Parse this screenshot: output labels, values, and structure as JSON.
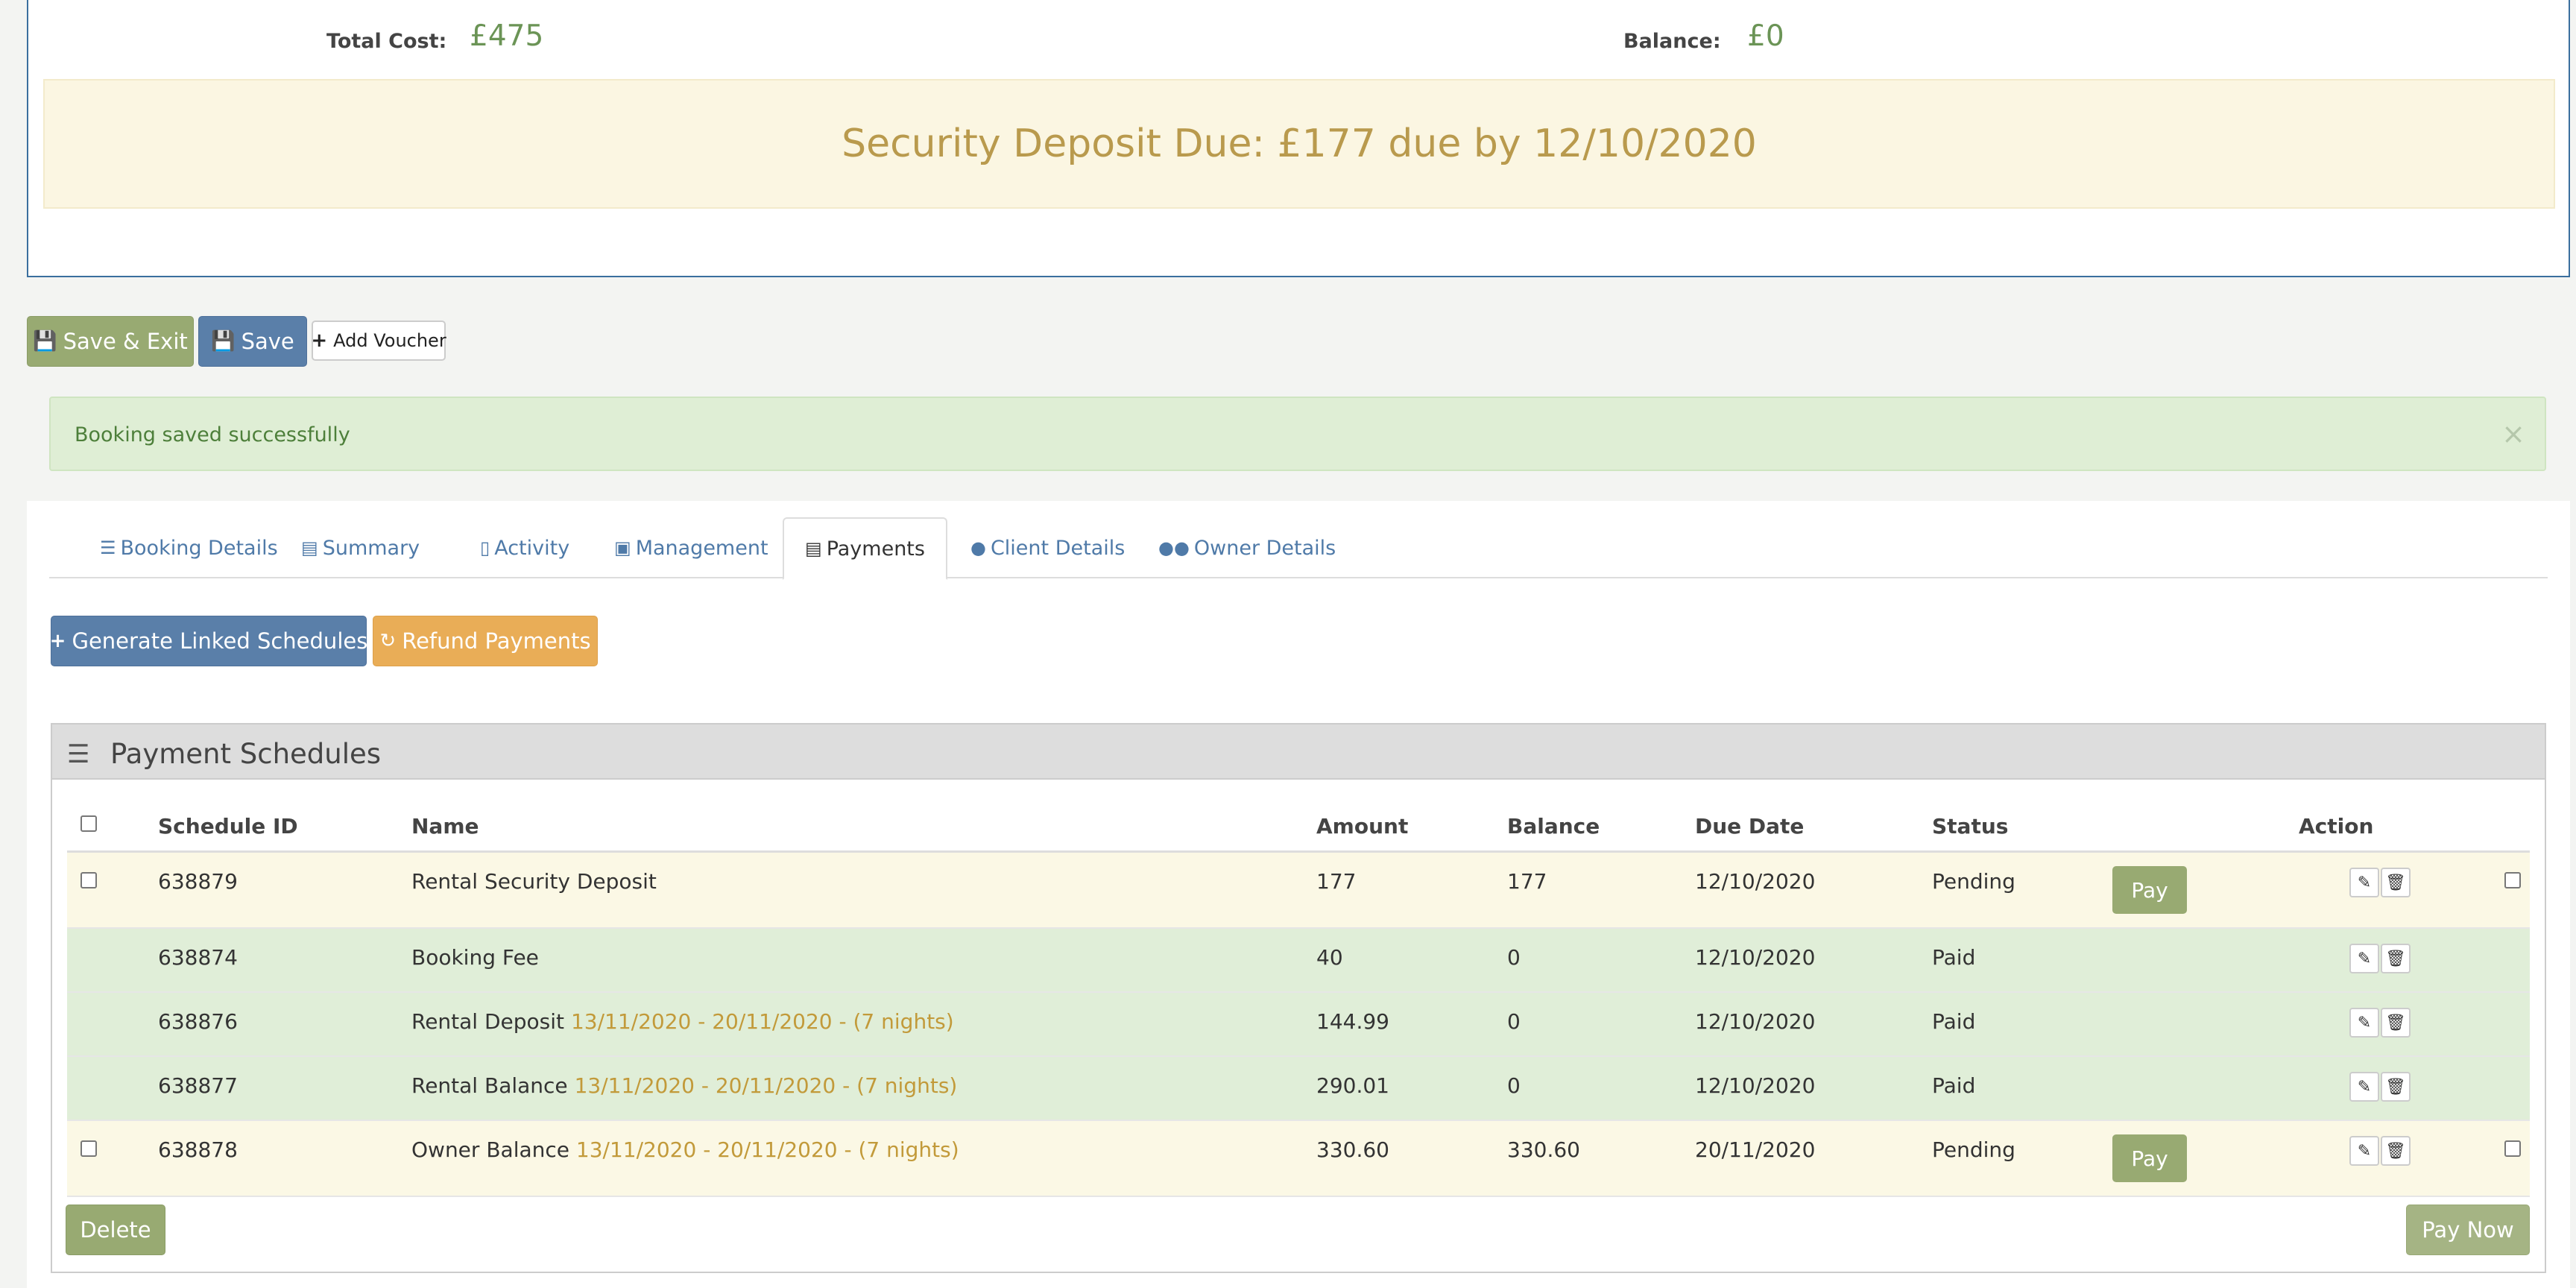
{
  "summary": {
    "total_cost_label": "Total Cost:",
    "total_cost_value": "£475",
    "balance_label": "Balance:",
    "balance_value": "£0",
    "deposit_due": "Security Deposit Due: £177 due by 12/10/2020"
  },
  "actions": {
    "save_exit": "Save & Exit",
    "save": "Save",
    "add_voucher": "Add Voucher"
  },
  "alert": {
    "message": "Booking saved successfully",
    "close": "×"
  },
  "tabs": [
    {
      "label": "Booking Details",
      "icon": "list-icon"
    },
    {
      "label": "Summary",
      "icon": "money-icon"
    },
    {
      "label": "Activity",
      "icon": "inbox-icon"
    },
    {
      "label": "Management",
      "icon": "desktop-icon"
    },
    {
      "label": "Payments",
      "icon": "credit-card-icon",
      "active": true
    },
    {
      "label": "Client Details",
      "icon": "user-icon"
    },
    {
      "label": "Owner Details",
      "icon": "users-icon"
    }
  ],
  "payments": {
    "generate_label": "Generate Linked Schedules",
    "refund_label": "Refund Payments",
    "panel_title": "Payment Schedules",
    "columns": {
      "id": "Schedule ID",
      "name": "Name",
      "amount": "Amount",
      "balance": "Balance",
      "due": "Due Date",
      "status": "Status",
      "action": "Action"
    },
    "rows": [
      {
        "id": "638879",
        "name": "Rental Security Deposit",
        "dates": "",
        "amount": "177",
        "balance": "177",
        "due": "12/10/2020",
        "status": "Pending",
        "pay": "Pay"
      },
      {
        "id": "638874",
        "name": "Booking Fee",
        "dates": "",
        "amount": "40",
        "balance": "0",
        "due": "12/10/2020",
        "status": "Paid"
      },
      {
        "id": "638876",
        "name": "Rental Deposit",
        "dates": "13/11/2020 - 20/11/2020 - (7 nights)",
        "amount": "144.99",
        "balance": "0",
        "due": "12/10/2020",
        "status": "Paid"
      },
      {
        "id": "638877",
        "name": "Rental Balance",
        "dates": "13/11/2020 - 20/11/2020 - (7 nights)",
        "amount": "290.01",
        "balance": "0",
        "due": "12/10/2020",
        "status": "Paid"
      },
      {
        "id": "638878",
        "name": "Owner Balance",
        "dates": "13/11/2020 - 20/11/2020 - (7 nights)",
        "amount": "330.60",
        "balance": "330.60",
        "due": "20/11/2020",
        "status": "Pending",
        "pay": "Pay"
      }
    ],
    "delete_label": "Delete",
    "pay_now_label": "Pay Now"
  },
  "colors": {
    "primary": "#5a7fa9",
    "success": "#98aa72",
    "warning": "#e9ad57",
    "pending_row": "#fbf8e5",
    "paid_row": "#e0eed8",
    "date_text": "#c29a3a"
  }
}
